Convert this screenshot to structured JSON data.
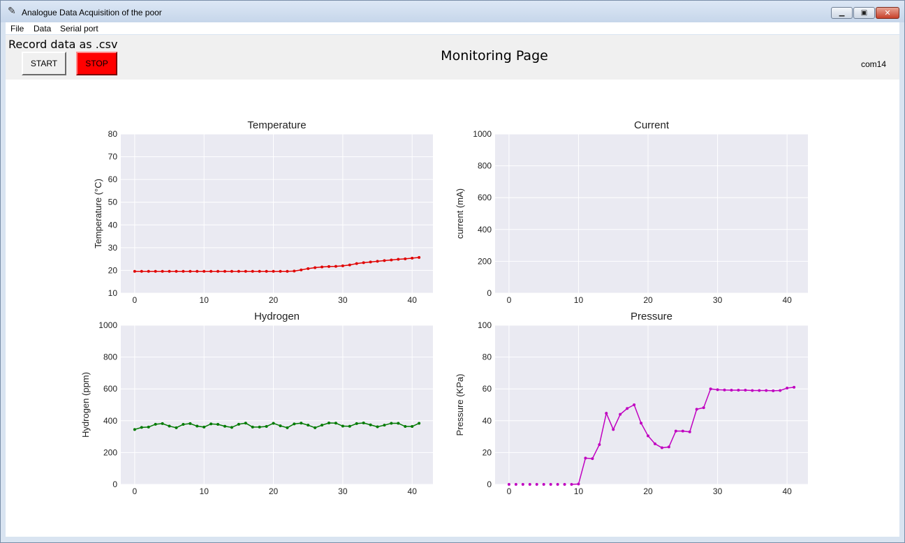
{
  "window": {
    "title": "Analogue Data Acquisition of the poor"
  },
  "menu": [
    "File",
    "Data",
    "Serial port"
  ],
  "toolbar": {
    "record_label": "Record data as .csv",
    "start_label": "START",
    "stop_label": "STOP",
    "page_title": "Monitoring Page",
    "port": "com14"
  },
  "chart_data": [
    {
      "type": "line",
      "title": "Temperature",
      "xlabel": "",
      "ylabel": "Temperature (°C)",
      "xlim": [
        -2,
        43
      ],
      "ylim": [
        10,
        80
      ],
      "xticks": [
        0,
        10,
        20,
        30,
        40
      ],
      "yticks": [
        10,
        20,
        30,
        40,
        50,
        60,
        70,
        80
      ],
      "grid": true,
      "color": "#e00000",
      "series": [
        {
          "values": [
            19.6,
            19.6,
            19.6,
            19.6,
            19.6,
            19.6,
            19.6,
            19.6,
            19.6,
            19.6,
            19.6,
            19.6,
            19.6,
            19.6,
            19.6,
            19.6,
            19.6,
            19.6,
            19.6,
            19.6,
            19.6,
            19.6,
            19.6,
            19.7,
            20.2,
            20.8,
            21.2,
            21.5,
            21.7,
            21.8,
            22.0,
            22.4,
            23.0,
            23.4,
            23.7,
            24.0,
            24.3,
            24.6,
            24.9,
            25.1,
            25.4,
            25.7
          ]
        }
      ]
    },
    {
      "type": "line",
      "title": "Current",
      "xlabel": "",
      "ylabel": "current (mA)",
      "xlim": [
        -2,
        43
      ],
      "ylim": [
        0,
        1000
      ],
      "xticks": [
        0,
        10,
        20,
        30,
        40
      ],
      "yticks": [
        0,
        200,
        400,
        600,
        800,
        1000
      ],
      "grid": true,
      "color": "#1f3fbf",
      "series": [
        {
          "values": []
        }
      ]
    },
    {
      "type": "line",
      "title": "Hydrogen",
      "xlabel": "",
      "ylabel": "Hydrogen (ppm)",
      "xlim": [
        -2,
        43
      ],
      "ylim": [
        0,
        1000
      ],
      "xticks": [
        0,
        10,
        20,
        30,
        40
      ],
      "yticks": [
        0,
        200,
        400,
        600,
        800,
        1000
      ],
      "grid": true,
      "color": "#007a00",
      "series": [
        {
          "values": [
            345,
            358,
            360,
            378,
            382,
            366,
            356,
            377,
            382,
            366,
            360,
            380,
            377,
            365,
            358,
            378,
            385,
            360,
            360,
            364,
            384,
            368,
            356,
            380,
            385,
            372,
            356,
            372,
            386,
            385,
            366,
            365,
            382,
            386,
            374,
            362,
            372,
            384,
            384,
            364,
            364,
            384
          ]
        }
      ]
    },
    {
      "type": "line",
      "title": "Pressure",
      "xlabel": "",
      "ylabel": "Pressure (KPa)",
      "xlim": [
        -2,
        43
      ],
      "ylim": [
        0,
        100
      ],
      "xticks": [
        0,
        10,
        20,
        30,
        40
      ],
      "yticks": [
        0,
        20,
        40,
        60,
        80,
        100
      ],
      "grid": true,
      "color": "#c000c0",
      "series": [
        {
          "values": [
            0,
            0,
            0,
            0,
            0,
            0,
            0,
            0,
            0,
            0,
            0.2,
            16.5,
            16.2,
            25,
            44.7,
            34.5,
            44,
            47.7,
            50,
            38.5,
            30.5,
            25.5,
            23,
            23.5,
            33.5,
            33.5,
            33,
            47.2,
            48.2,
            60,
            59.5,
            59.3,
            59.2,
            59.2,
            59.2,
            59,
            59,
            59,
            58.8,
            59,
            60.5,
            61
          ]
        }
      ]
    }
  ]
}
